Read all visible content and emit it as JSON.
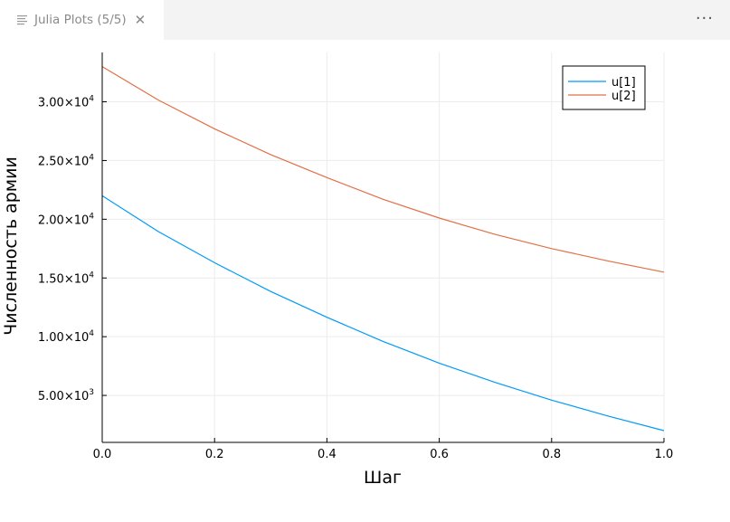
{
  "tab": {
    "title": "Julia Plots (5/5)",
    "close_glyph": "✕",
    "icon": "preview-icon"
  },
  "more_actions": {
    "glyph": "···",
    "icon": "ellipsis-icon"
  },
  "chart_data": {
    "type": "line",
    "title": "",
    "xlabel": "Шаг",
    "ylabel": "Численность армии",
    "xlim": [
      0,
      1
    ],
    "ylim": [
      1000,
      34200
    ],
    "grid": true,
    "legend_position": "top-right",
    "xticks": [
      {
        "value": 0,
        "label": "0.0"
      },
      {
        "value": 0.2,
        "label": "0.2"
      },
      {
        "value": 0.4,
        "label": "0.4"
      },
      {
        "value": 0.6,
        "label": "0.6"
      },
      {
        "value": 0.8,
        "label": "0.8"
      },
      {
        "value": 1.0,
        "label": "1.0"
      }
    ],
    "yticks": [
      {
        "value": 5000,
        "mantissa": "5.00",
        "exponent": "3"
      },
      {
        "value": 10000,
        "mantissa": "1.00",
        "exponent": "4"
      },
      {
        "value": 15000,
        "mantissa": "1.50",
        "exponent": "4"
      },
      {
        "value": 20000,
        "mantissa": "2.00",
        "exponent": "4"
      },
      {
        "value": 25000,
        "mantissa": "2.50",
        "exponent": "4"
      },
      {
        "value": 30000,
        "mantissa": "3.00",
        "exponent": "4"
      }
    ],
    "x": [
      0.0,
      0.1,
      0.2,
      0.3,
      0.4,
      0.5,
      0.6,
      0.7,
      0.8,
      0.9,
      1.0
    ],
    "series": [
      {
        "name": "u[1]",
        "color": "#009af9",
        "values": [
          22000,
          18950,
          16300,
          13850,
          11650,
          9600,
          7750,
          6100,
          4600,
          3250,
          2000
        ]
      },
      {
        "name": "u[2]",
        "color": "#e26f46",
        "values": [
          33000,
          30150,
          27700,
          25500,
          23550,
          21700,
          20100,
          18700,
          17500,
          16450,
          15500
        ]
      }
    ]
  }
}
